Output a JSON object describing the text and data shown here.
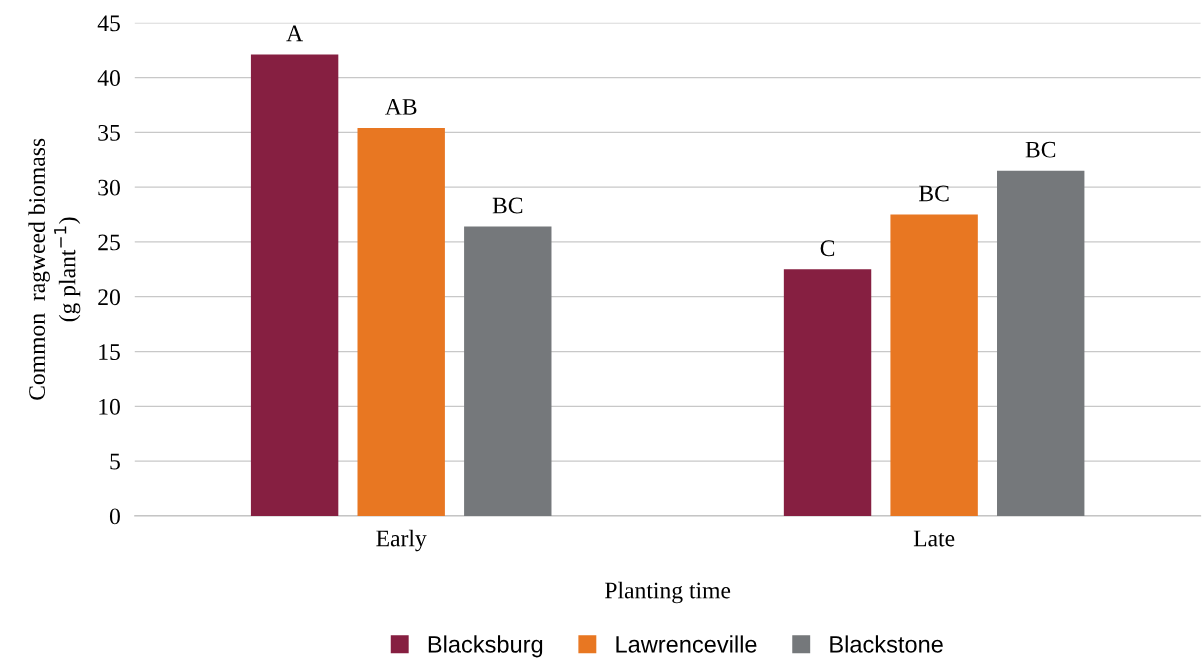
{
  "chart_data": {
    "type": "bar",
    "xlabel": "Planting time",
    "ylabel": "Common  ragweed biomass\n(g plant$^{−1}$)",
    "categories": [
      "Early",
      "Late"
    ],
    "series": [
      {
        "name": "Blacksburg",
        "color": "#861f41",
        "values": [
          42.1,
          22.5
        ],
        "value_labels": [
          "A",
          "C"
        ]
      },
      {
        "name": "Lawrenceville",
        "color": "#e87722",
        "values": [
          35.4,
          27.5
        ],
        "value_labels": [
          "AB",
          "BC"
        ]
      },
      {
        "name": "Blackstone",
        "color": "#75787b",
        "values": [
          26.4,
          31.5
        ],
        "value_labels": [
          "BC",
          "BC"
        ]
      }
    ],
    "ylim": [
      0,
      45
    ],
    "yticks": [
      0,
      5,
      10,
      15,
      20,
      25,
      30,
      35,
      40,
      45
    ],
    "grid": "y",
    "legend": "bottom"
  }
}
